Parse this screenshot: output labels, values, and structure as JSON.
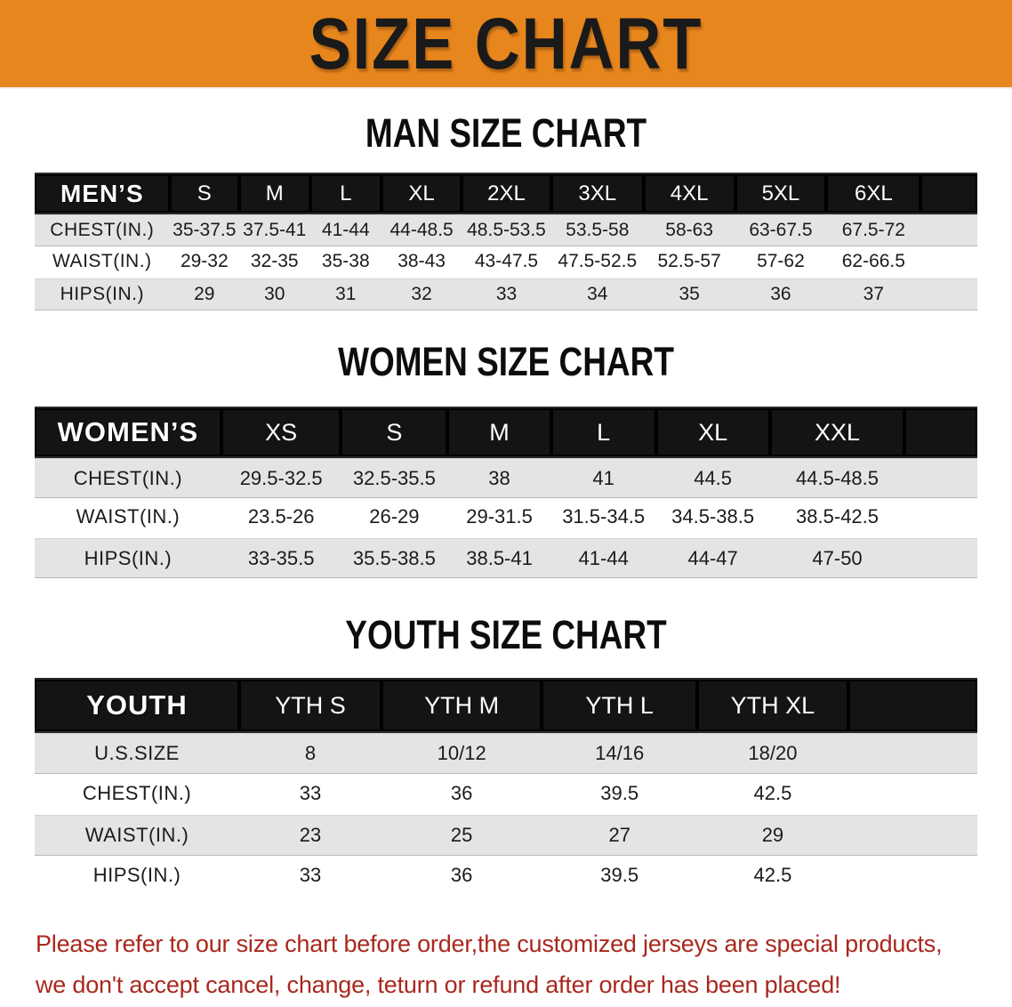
{
  "banner": {
    "title": "SIZE CHART"
  },
  "colors": {
    "banner_bg": "#E8861E",
    "table_header_bg": "#141414",
    "stripe_row_bg": "#E4E4E4",
    "disclaimer_text": "#A9281E"
  },
  "sections": [
    {
      "heading": "MAN SIZE CHART",
      "header_label": "MEN’S",
      "columns": [
        "S",
        "M",
        "L",
        "XL",
        "2XL",
        "3XL",
        "4XL",
        "5XL",
        "6XL"
      ],
      "rows": [
        {
          "label": "CHEST(IN.)",
          "values": [
            "35-37.5",
            "37.5-41",
            "41-44",
            "44-48.5",
            "48.5-53.5",
            "53.5-58",
            "58-63",
            "63-67.5",
            "67.5-72"
          ]
        },
        {
          "label": "WAIST(IN.)",
          "values": [
            "29-32",
            "32-35",
            "35-38",
            "38-43",
            "43-47.5",
            "47.5-52.5",
            "52.5-57",
            "57-62",
            "62-66.5"
          ]
        },
        {
          "label": "HIPS(IN.)",
          "values": [
            "29",
            "30",
            "31",
            "32",
            "33",
            "34",
            "35",
            "36",
            "37"
          ]
        }
      ]
    },
    {
      "heading": "WOMEN SIZE CHART",
      "header_label": "WOMEN’S",
      "columns": [
        "XS",
        "S",
        "M",
        "L",
        "XL",
        "XXL"
      ],
      "rows": [
        {
          "label": "CHEST(IN.)",
          "values": [
            "29.5-32.5",
            "32.5-35.5",
            "38",
            "41",
            "44.5",
            "44.5-48.5"
          ]
        },
        {
          "label": "WAIST(IN.)",
          "values": [
            "23.5-26",
            "26-29",
            "29-31.5",
            "31.5-34.5",
            "34.5-38.5",
            "38.5-42.5"
          ]
        },
        {
          "label": "HIPS(IN.)",
          "values": [
            "33-35.5",
            "35.5-38.5",
            "38.5-41",
            "41-44",
            "44-47",
            "47-50"
          ]
        }
      ]
    },
    {
      "heading": "YOUTH SIZE CHART",
      "header_label": "YOUTH",
      "columns": [
        "YTH S",
        "YTH M",
        "YTH L",
        "YTH XL"
      ],
      "rows": [
        {
          "label": "U.S.SIZE",
          "values": [
            "8",
            "10/12",
            "14/16",
            "18/20"
          ]
        },
        {
          "label": "CHEST(IN.)",
          "values": [
            "33",
            "36",
            "39.5",
            "42.5"
          ]
        },
        {
          "label": "WAIST(IN.)",
          "values": [
            "23",
            "25",
            "27",
            "29"
          ]
        },
        {
          "label": "HIPS(IN.)",
          "values": [
            "33",
            "36",
            "39.5",
            "42.5"
          ]
        }
      ]
    }
  ],
  "disclaimer": {
    "line1": "Please refer to our size chart before order,the customized jerseys are special products,",
    "line2": "we don't accept cancel, change, teturn or refund after order has been placed!"
  }
}
